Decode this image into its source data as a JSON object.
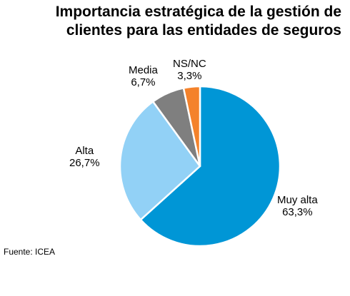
{
  "chart_data": {
    "type": "pie",
    "title_lines": [
      "Importancia estratégica de la gestión de",
      "clientes para las entidades de seguros"
    ],
    "slices": [
      {
        "label": "Muy alta",
        "value_label": "63,3%",
        "value": 63.3,
        "color": "#0096d6"
      },
      {
        "label": "Alta",
        "value_label": "26,7%",
        "value": 26.7,
        "color": "#92d1f6"
      },
      {
        "label": "Media",
        "value_label": "6,7%",
        "value": 6.7,
        "color": "#7f7f7f"
      },
      {
        "label": "NS/NC",
        "value_label": "3,3%",
        "value": 3.3,
        "color": "#f4822b"
      }
    ],
    "start_angle_deg": 0,
    "direction": "clockwise",
    "legend": "none"
  },
  "source": "Fuente: ICEA"
}
